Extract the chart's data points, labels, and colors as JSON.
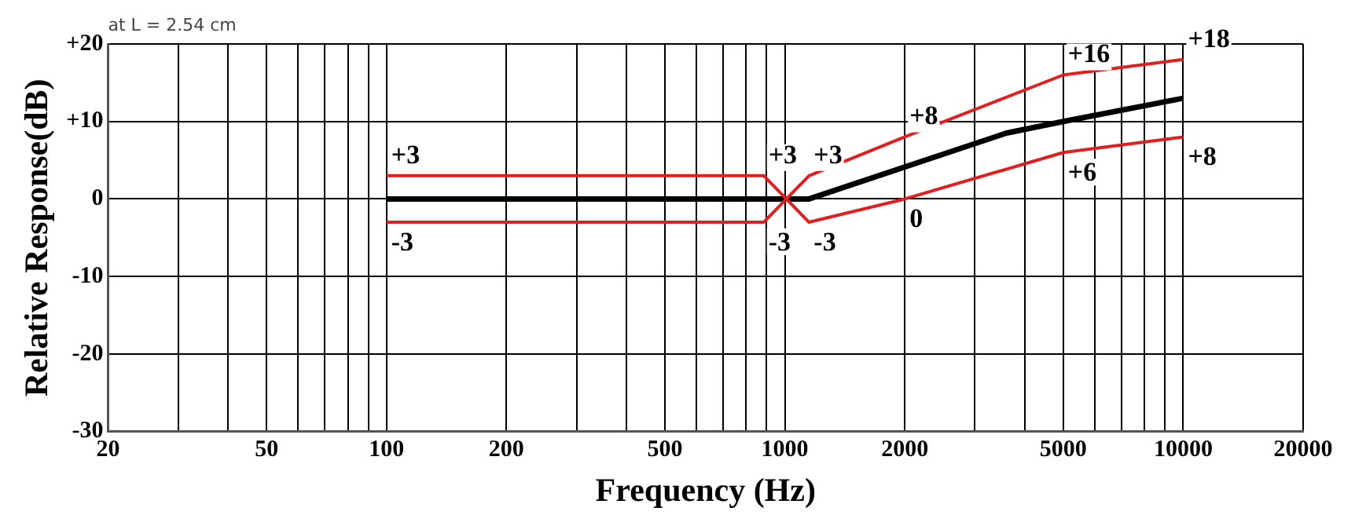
{
  "chart_data": {
    "type": "line",
    "xlabel": "Frequency (Hz)",
    "ylabel": "Relative Response(dB)",
    "log": "x",
    "grid": true,
    "legend": false,
    "marker": "none",
    "line_style": "solid",
    "xlim": [
      20,
      20000
    ],
    "xticks": [
      20,
      {
        "value": 30,
        "label": null
      },
      {
        "value": 40,
        "label": null
      },
      50,
      {
        "value": 60,
        "label": null
      },
      {
        "value": 70,
        "label": null
      },
      {
        "value": 80,
        "label": null
      },
      {
        "value": 90,
        "label": null
      },
      100,
      200,
      {
        "value": 300,
        "label": null
      },
      {
        "value": 400,
        "label": null
      },
      500,
      {
        "value": 600,
        "label": null
      },
      {
        "value": 700,
        "label": null
      },
      {
        "value": 800,
        "label": null
      },
      {
        "value": 900,
        "label": null
      },
      1000,
      2000,
      {
        "value": 3000,
        "label": null
      },
      {
        "value": 4000,
        "label": null
      },
      5000,
      {
        "value": 6000,
        "label": null
      },
      {
        "value": 7000,
        "label": null
      },
      {
        "value": 8000,
        "label": null
      },
      {
        "value": 9000,
        "label": null
      },
      10000,
      20000
    ],
    "ylim": [
      -30,
      20
    ],
    "yticks": [
      {
        "value": -30,
        "label": "-30"
      },
      {
        "value": -20,
        "label": "-20"
      },
      {
        "value": -10,
        "label": "-10"
      },
      0,
      {
        "value": 10,
        "label": "+10"
      },
      {
        "value": 20,
        "label": "+20"
      }
    ],
    "series": [
      {
        "color": "#e02020",
        "x": [
          100,
          885,
          1150,
          2000,
          5000,
          10000
        ],
        "values": [
          3,
          3,
          -3,
          0,
          6,
          8
        ]
      },
      {
        "color": "#e02020",
        "x": [
          100,
          885,
          1150,
          2000,
          5000,
          10000
        ],
        "values": [
          -3,
          -3,
          3,
          8,
          16,
          18
        ]
      },
      {
        "color": "#000000",
        "x": [
          100,
          1150,
          3600,
          5000,
          10000
        ],
        "values": [
          0,
          0,
          8.5,
          10,
          13
        ]
      }
    ],
    "annotations": [
      "at L = 2.54 cm",
      {
        "text": "+3",
        "x": 100,
        "y": 3
      },
      {
        "text": "-3",
        "x": 100,
        "y": -3
      },
      {
        "text": "+3",
        "x": 885,
        "y": 3
      },
      {
        "text": "-3",
        "x": 885,
        "y": -3
      },
      {
        "text": "+3",
        "x": 1150,
        "y": 3
      },
      {
        "text": "-3",
        "x": 1150,
        "y": -3
      },
      {
        "text": "+8",
        "x": 2000,
        "y": 8
      },
      {
        "text": "0",
        "x": 2000,
        "y": 0
      },
      {
        "text": "+16",
        "x": 5000,
        "y": 16
      },
      {
        "text": "+6",
        "x": 5000,
        "y": 6
      },
      {
        "text": "+18",
        "x": 10000,
        "y": 18
      },
      {
        "text": "+8",
        "x": 10000,
        "y": 8
      }
    ]
  }
}
